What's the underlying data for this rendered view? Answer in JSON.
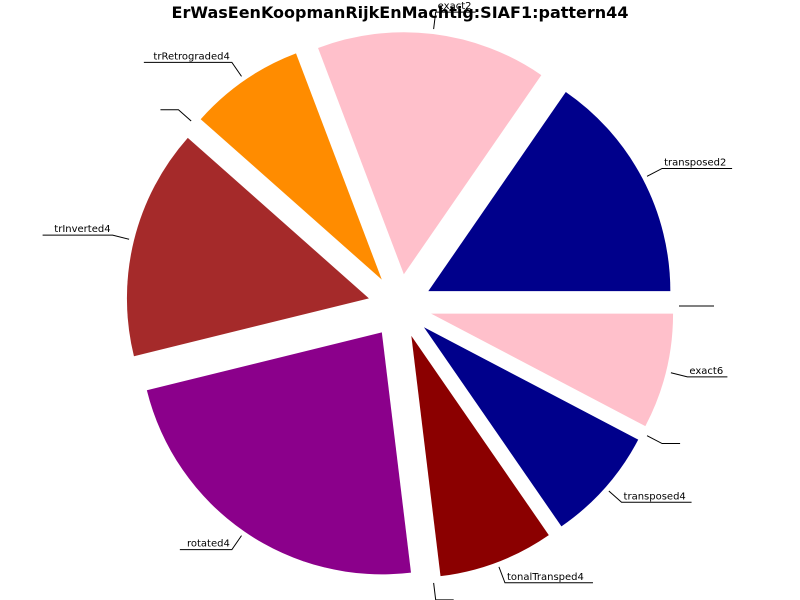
{
  "chart_data": {
    "type": "pie",
    "title": "ErWasEenKoopmanRijkEnMachtig:SIAF1:pattern44",
    "start_angle_deg": 0,
    "direction": "counterclockwise",
    "legend": "none",
    "slices": [
      {
        "label": "transposed2",
        "value": 2,
        "color": "#00008B"
      },
      {
        "label": "exact2",
        "value": 2,
        "color": "#FFC0CB"
      },
      {
        "label": "trRetrograded4",
        "value": 1,
        "color": "#FF8C00"
      },
      {
        "label": "",
        "value": 0,
        "color": "#000000"
      },
      {
        "label": "trInverted4",
        "value": 2,
        "color": "#A52A2A"
      },
      {
        "label": "rotated4",
        "value": 3,
        "color": "#8B008B"
      },
      {
        "label": "",
        "value": 0,
        "color": "#000000"
      },
      {
        "label": "tonalTransped4",
        "value": 1,
        "color": "#8B0000"
      },
      {
        "label": "transposed4",
        "value": 1,
        "color": "#00008B"
      },
      {
        "label": "",
        "value": 0,
        "color": "#000000"
      },
      {
        "label": "exact6",
        "value": 1,
        "color": "#FFC0CB"
      },
      {
        "label": "",
        "value": 0,
        "color": "#000000"
      }
    ]
  }
}
